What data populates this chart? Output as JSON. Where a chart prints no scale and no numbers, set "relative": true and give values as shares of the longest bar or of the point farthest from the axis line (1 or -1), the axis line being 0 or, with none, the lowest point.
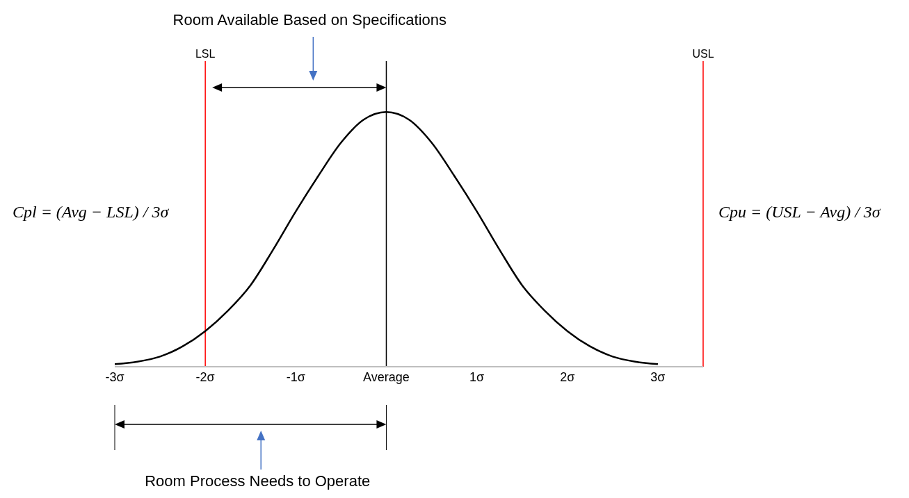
{
  "chart_data": {
    "type": "line",
    "relative": true,
    "x": [
      -3,
      -2.75,
      -2.5,
      -2.25,
      -2,
      -1.75,
      -1.5,
      -1.25,
      -1,
      -0.75,
      -0.5,
      -0.25,
      0,
      0.25,
      0.5,
      0.75,
      1,
      1.25,
      1.5,
      1.75,
      2,
      2.25,
      2.5,
      2.75,
      3
    ],
    "series": [
      {
        "color": "#000000",
        "values": [
          0.01,
          0.02,
          0.04,
          0.08,
          0.14,
          0.22,
          0.32,
          0.46,
          0.61,
          0.75,
          0.88,
          0.97,
          1,
          0.97,
          0.88,
          0.75,
          0.61,
          0.46,
          0.32,
          0.22,
          0.14,
          0.08,
          0.04,
          0.02,
          0.01
        ]
      }
    ],
    "xlim": [
      -3,
      3.5
    ],
    "xticks": [
      {
        "value": -3,
        "label": "-3σ"
      },
      {
        "value": -2,
        "label": "-2σ"
      },
      {
        "value": -1,
        "label": "-1σ"
      },
      {
        "value": 0,
        "label": "Average"
      },
      {
        "value": 1,
        "label": "1σ"
      },
      {
        "value": 2,
        "label": "2σ"
      },
      {
        "value": 3,
        "label": "3σ"
      }
    ],
    "ref_lines": [
      {
        "axis": "x",
        "value": -2,
        "label": "LSL",
        "color": "#ff0000"
      },
      {
        "axis": "x",
        "value": 3.5,
        "label": "USL",
        "color": "#ff0000"
      },
      {
        "axis": "x",
        "value": 0,
        "label": null,
        "color": "#000000"
      }
    ],
    "annotations": [
      "Room Available Based on Specifications",
      "Room Process Needs to Operate",
      "Cpl = (Avg − LSL) / 3σ",
      "Cpu = (USL − Avg) / 3σ"
    ],
    "marker": "none"
  }
}
